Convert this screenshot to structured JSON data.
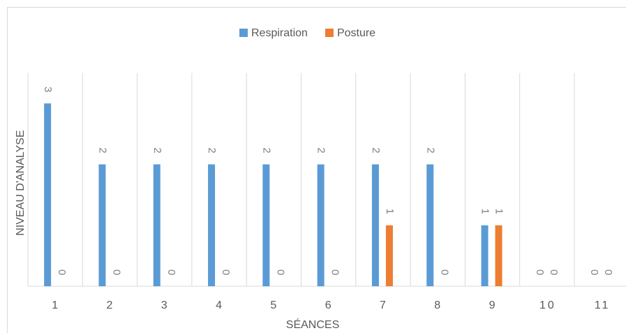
{
  "chart_data": {
    "type": "bar",
    "x_label": "SÉANCES",
    "y_label": "NIVEAU D'ANALYSE",
    "categories": [
      "1",
      "2",
      "3",
      "4",
      "5",
      "6",
      "7",
      "8",
      "9",
      "10",
      "11"
    ],
    "series": [
      {
        "name": "Respiration",
        "color": "#5b9bd5",
        "values": [
          3,
          2,
          2,
          2,
          2,
          2,
          2,
          2,
          1,
          0,
          0
        ]
      },
      {
        "name": "Posture",
        "color": "#ed7d31",
        "values": [
          0,
          0,
          0,
          0,
          0,
          0,
          1,
          0,
          1,
          0,
          0
        ]
      }
    ],
    "ylim": [
      0,
      3.5
    ],
    "grid": true,
    "legend": "top"
  }
}
